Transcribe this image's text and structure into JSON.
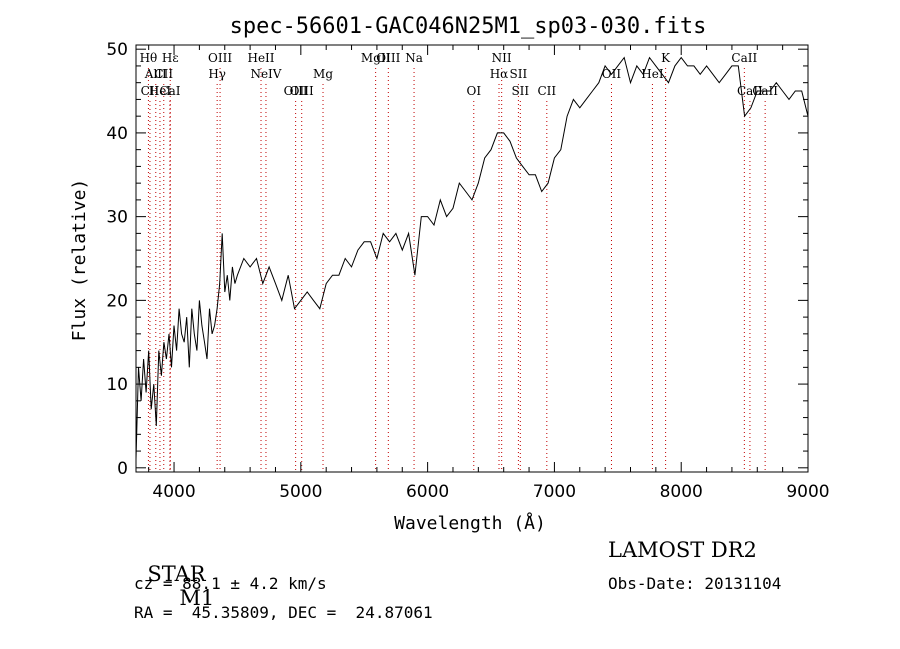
{
  "chart_data": {
    "type": "line",
    "title": "spec-56601-GAC046N25M1_sp03-030.fits",
    "xlabel": "Wavelength (Å)",
    "ylabel": "Flux (relative)",
    "xlim": [
      3700,
      9000
    ],
    "ylim": [
      -0.5,
      50.5
    ],
    "xticks": [
      4000,
      5000,
      6000,
      7000,
      8000,
      9000
    ],
    "yticks": [
      0,
      10,
      20,
      30,
      40,
      50
    ],
    "grid": false,
    "series": [
      {
        "x": [
          3700,
          3720,
          3740,
          3760,
          3780,
          3800,
          3820,
          3840,
          3860,
          3880,
          3900,
          3920,
          3940,
          3960,
          3980,
          4000,
          4020,
          4040,
          4060,
          4080,
          4100,
          4120,
          4140,
          4160,
          4180,
          4200,
          4220,
          4240,
          4260,
          4280,
          4300,
          4320,
          4340,
          4360,
          4380,
          4400,
          4420,
          4440,
          4460,
          4480,
          4500,
          4550,
          4600,
          4650,
          4700,
          4750,
          4800,
          4850,
          4900,
          4950,
          5000,
          5050,
          5100,
          5150,
          5200,
          5250,
          5300,
          5350,
          5400,
          5450,
          5500,
          5550,
          5600,
          5650,
          5700,
          5750,
          5800,
          5850,
          5900,
          5950,
          6000,
          6050,
          6100,
          6150,
          6200,
          6250,
          6300,
          6350,
          6400,
          6450,
          6500,
          6550,
          6600,
          6650,
          6700,
          6750,
          6800,
          6850,
          6900,
          6950,
          7000,
          7050,
          7100,
          7150,
          7200,
          7250,
          7300,
          7350,
          7400,
          7450,
          7500,
          7550,
          7600,
          7650,
          7700,
          7750,
          7800,
          7850,
          7900,
          7950,
          8000,
          8050,
          8100,
          8150,
          8200,
          8250,
          8300,
          8350,
          8400,
          8450,
          8500,
          8550,
          8600,
          8650,
          8700,
          8750,
          8800,
          8850,
          8900,
          8950,
          9000
        ],
        "y": [
          1,
          12,
          8,
          13,
          9,
          14,
          7,
          10,
          5,
          14,
          11,
          15,
          13,
          16,
          12,
          17,
          14,
          19,
          16,
          15,
          18,
          12,
          19,
          16,
          14,
          20,
          17,
          15,
          13,
          19,
          16,
          17,
          19,
          22,
          28,
          21,
          23,
          20,
          24,
          22,
          23,
          25,
          24,
          25,
          22,
          24,
          22,
          20,
          23,
          19,
          20,
          21,
          20,
          19,
          22,
          23,
          23,
          25,
          24,
          26,
          27,
          27,
          25,
          28,
          27,
          28,
          26,
          28,
          23,
          30,
          30,
          29,
          32,
          30,
          31,
          34,
          33,
          32,
          34,
          37,
          38,
          40,
          40,
          39,
          37,
          36,
          35,
          35,
          33,
          34,
          37,
          38,
          42,
          44,
          43,
          44,
          45,
          46,
          48,
          47,
          48,
          49,
          46,
          48,
          47,
          49,
          48,
          47,
          46,
          48,
          49,
          48,
          48,
          47,
          48,
          47,
          46,
          47,
          48,
          48,
          42,
          43,
          45,
          45,
          45,
          46,
          45,
          44,
          45,
          45,
          42
        ]
      }
    ],
    "line_markers": [
      {
        "label": "Hθ",
        "wavelength": 3798,
        "row": 1
      },
      {
        "label": "AlII",
        "wavelength": 3856,
        "row": 2
      },
      {
        "label": "CII",
        "wavelength": 3810,
        "row": 3
      },
      {
        "label": "HeI",
        "wavelength": 3889,
        "row": 3
      },
      {
        "label": "CII",
        "wavelength": 3919,
        "row": 2
      },
      {
        "label": "Hε",
        "wavelength": 3970,
        "row": 1
      },
      {
        "label": "CaI",
        "wavelength": 3968,
        "row": 3
      },
      {
        "label": "OIII",
        "wavelength": 4363,
        "row": 1
      },
      {
        "label": "Hγ",
        "wavelength": 4340,
        "row": 2
      },
      {
        "label": "HeII",
        "wavelength": 4686,
        "row": 1
      },
      {
        "label": "NeIV",
        "wavelength": 4725,
        "row": 2
      },
      {
        "label": "OIII",
        "wavelength": 4959,
        "row": 3
      },
      {
        "label": "OIII",
        "wavelength": 5007,
        "row": 3
      },
      {
        "label": "Mg",
        "wavelength": 5175,
        "row": 2
      },
      {
        "label": "MgII",
        "wavelength": 5590,
        "row": 1
      },
      {
        "label": "OIII",
        "wavelength": 5690,
        "row": 1
      },
      {
        "label": "Na",
        "wavelength": 5893,
        "row": 1
      },
      {
        "label": "OI",
        "wavelength": 6364,
        "row": 3
      },
      {
        "label": "NII",
        "wavelength": 6584,
        "row": 1
      },
      {
        "label": "Hα",
        "wavelength": 6563,
        "row": 2
      },
      {
        "label": "SII",
        "wavelength": 6716,
        "row": 2
      },
      {
        "label": "SII",
        "wavelength": 6731,
        "row": 3
      },
      {
        "label": "CII",
        "wavelength": 6940,
        "row": 3
      },
      {
        "label": "OII",
        "wavelength": 7450,
        "row": 2
      },
      {
        "label": "HeI",
        "wavelength": 7773,
        "row": 2
      },
      {
        "label": "K",
        "wavelength": 7877,
        "row": 1
      },
      {
        "label": "CaII",
        "wavelength": 8498,
        "row": 1
      },
      {
        "label": "CaII",
        "wavelength": 8542,
        "row": 3
      },
      {
        "label": "CaII",
        "wavelength": 8662,
        "row": 3
      }
    ],
    "marker_color": "#c00000"
  },
  "info": {
    "class_label": "STAR",
    "subclass": "M1",
    "survey": "LAMOST DR2",
    "cz": "cz = 88.1 ± 4.2 km/s",
    "obs_date": "Obs-Date: 20131104",
    "radec": "RA =  45.35809, DEC =  24.87061"
  }
}
